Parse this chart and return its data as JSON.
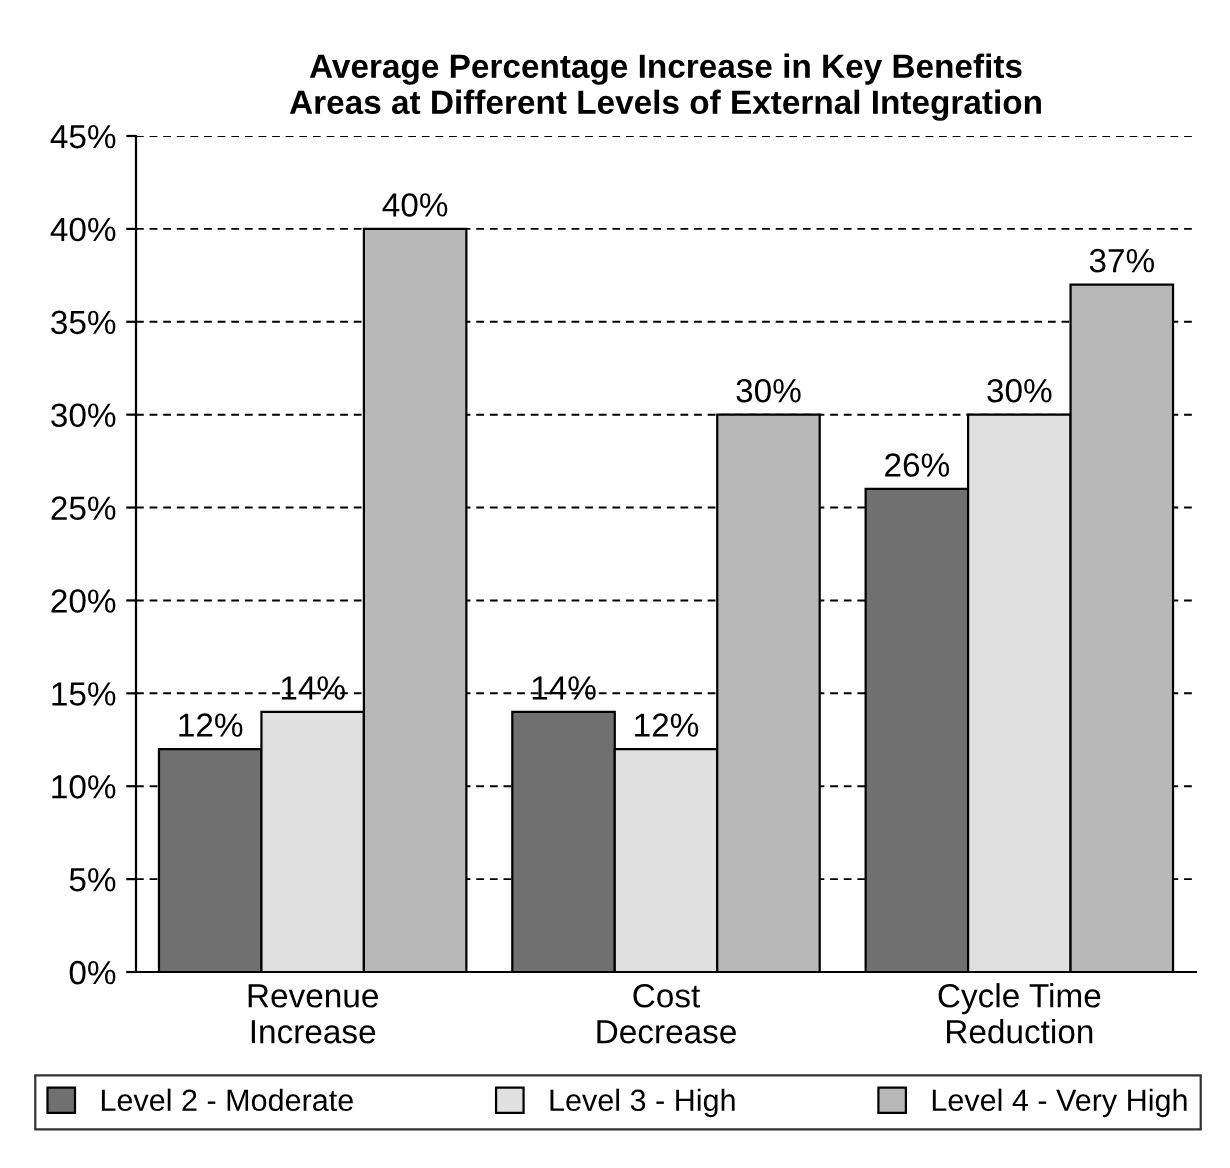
{
  "chart_data": {
    "type": "bar",
    "title": "Average Percentage Increase in Key Benefits\nAreas at Different Levels of External Integration",
    "categories": [
      "Revenue\nIncrease",
      "Cost\nDecrease",
      "Cycle Time\nReduction"
    ],
    "series": [
      {
        "name": "Level 2 - Moderate",
        "color": "#707070",
        "values": [
          12,
          14,
          26
        ],
        "value_labels": [
          "12%",
          "14%",
          "26%"
        ]
      },
      {
        "name": "Level 3 - High",
        "color": "#e0e0e0",
        "values": [
          14,
          12,
          30
        ],
        "value_labels": [
          "14%",
          "12%",
          "30%"
        ]
      },
      {
        "name": "Level 4 - Very High",
        "color": "#b8b8b8",
        "values": [
          40,
          30,
          37
        ],
        "value_labels": [
          "40%",
          "30%",
          "37%"
        ]
      }
    ],
    "ylim": [
      0,
      45
    ],
    "yticks": [
      {
        "value": 0,
        "label": "0%"
      },
      {
        "value": 5,
        "label": "5%"
      },
      {
        "value": 10,
        "label": "10%"
      },
      {
        "value": 15,
        "label": "15%"
      },
      {
        "value": 20,
        "label": "20%"
      },
      {
        "value": 25,
        "label": "25%"
      },
      {
        "value": 30,
        "label": "30%"
      },
      {
        "value": 35,
        "label": "35%"
      },
      {
        "value": 40,
        "label": "40%"
      },
      {
        "value": 45,
        "label": "45%"
      }
    ],
    "grid": "y",
    "legend": "bottom"
  }
}
